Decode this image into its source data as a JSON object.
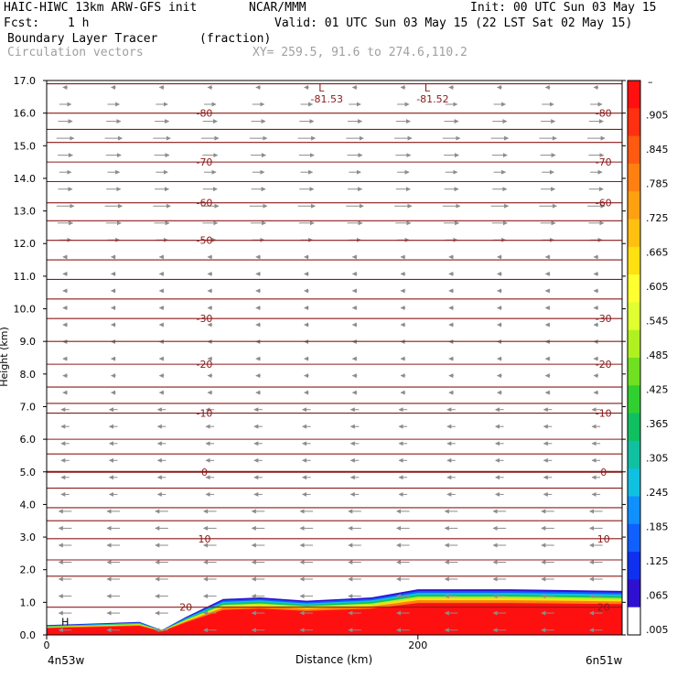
{
  "header": {
    "model": "HAIC-HIWC 13km ARW-GFS init",
    "org": "NCAR/MMM",
    "init": "Init: 00 UTC Sun 03 May 15",
    "fcst_label": "Fcst:",
    "fcst_value": "1 h",
    "valid": "Valid: 01 UTC Sun 03 May 15 (22 LST Sat 02 May 15)",
    "field": "Boundary Layer Tracer",
    "field_units": "(fraction)",
    "vectors": "Circulation vectors",
    "xsec": "XY= 259.5, 91.6 to 274.6,110.2"
  },
  "chart_data": {
    "type": "heatmap",
    "ylabel": "Height (km)",
    "xlabel": "Distance (km)",
    "ylim": [
      0,
      17
    ],
    "xlim": [
      0,
      310
    ],
    "y_ticks": [
      "0.0",
      "1.0",
      "2.0",
      "3.0",
      "4.0",
      "5.0",
      "6.0",
      "7.0",
      "8.0",
      "9.0",
      "10.0",
      "11.0",
      "12.0",
      "13.0",
      "14.0",
      "15.0",
      "16.0",
      "17.0"
    ],
    "x_ticks": [
      {
        "value": 0,
        "label": "0"
      },
      {
        "value": 200,
        "label": "200"
      }
    ],
    "x_endpoints": {
      "left": "4n53w",
      "right": "6n51w"
    },
    "colorbar": {
      "top_label": "–",
      "labels": [
        ".905",
        ".845",
        ".785",
        ".725",
        ".665",
        ".605",
        ".545",
        ".485",
        ".425",
        ".365",
        ".305",
        ".245",
        ".185",
        ".125",
        ".065",
        ".005"
      ],
      "colors": [
        "#ff1010",
        "#ff3010",
        "#ff5a10",
        "#ff8010",
        "#ffa010",
        "#ffc010",
        "#ffe010",
        "#ffff30",
        "#e0ff30",
        "#b0f020",
        "#70e020",
        "#30d030",
        "#10c060",
        "#10c0a0",
        "#10c0e0",
        "#1090ff",
        "#1060ff",
        "#1030f0",
        "#3010d0",
        "#ffffff"
      ]
    },
    "isotherms": [
      {
        "label": "-80",
        "height": 16.0,
        "label_positions": [
          85,
          300
        ]
      },
      {
        "label": "-70",
        "height": 14.5,
        "label_positions": [
          85,
          300
        ]
      },
      {
        "label": "-60",
        "height": 13.25,
        "label_positions": [
          85,
          300
        ]
      },
      {
        "label": "-50",
        "height": 12.1,
        "label_positions": [
          85
        ]
      },
      {
        "label": "-30",
        "height": 9.7,
        "label_positions": [
          85,
          300
        ]
      },
      {
        "label": "-20",
        "height": 8.3,
        "label_positions": [
          85,
          300
        ]
      },
      {
        "label": "-10",
        "height": 6.8,
        "label_positions": [
          85,
          300
        ]
      },
      {
        "label": "0",
        "height": 5.0,
        "label_positions": [
          85,
          300
        ]
      },
      {
        "label": "10",
        "height": 2.95,
        "label_positions": [
          85,
          300
        ]
      },
      {
        "label": "20",
        "height": 0.85,
        "label_positions": [
          75,
          300
        ]
      }
    ],
    "extra_isotherm_heights": [
      16.9,
      15.5,
      15.1,
      13.9,
      12.7,
      11.5,
      10.9,
      10.3,
      9.0,
      7.6,
      7.1,
      6.0,
      5.55,
      4.5,
      3.9,
      3.5,
      2.3,
      1.8
    ],
    "lows": [
      {
        "label": "L",
        "value": "-81.53",
        "x": 148
      },
      {
        "label": "L",
        "value": "-81.52",
        "x": 205
      }
    ],
    "high": {
      "label": "H",
      "x": 10
    },
    "tracer_top": [
      {
        "x": 0,
        "h": 0.3
      },
      {
        "x": 50,
        "h": 0.4
      },
      {
        "x": 62,
        "h": 0.15
      },
      {
        "x": 75,
        "h": 0.55
      },
      {
        "x": 95,
        "h": 1.1
      },
      {
        "x": 115,
        "h": 1.15
      },
      {
        "x": 140,
        "h": 1.05
      },
      {
        "x": 175,
        "h": 1.15
      },
      {
        "x": 200,
        "h": 1.4
      },
      {
        "x": 250,
        "h": 1.4
      },
      {
        "x": 310,
        "h": 1.35
      }
    ],
    "wind_summary": "Weak westward (left-pointing) flow throughout most of the column; eastward (right-pointing) flow between about 12 and 16.5 km."
  }
}
